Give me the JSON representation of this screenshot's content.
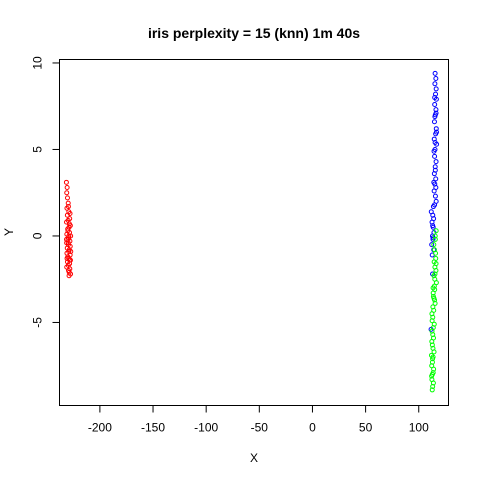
{
  "chart_data": {
    "type": "scatter",
    "title": "iris perplexity = 15 (knn) 1m 40s",
    "xlabel": "X",
    "ylabel": "Y",
    "xlim": [
      -238,
      128
    ],
    "ylim": [
      -9.8,
      10.2
    ],
    "xticks": [
      -200,
      -150,
      -100,
      -50,
      0,
      50,
      100
    ],
    "xtick_labels": [
      "-200",
      "-150",
      "-100",
      "-50",
      "0",
      "50",
      "100"
    ],
    "yticks": [
      -5,
      0,
      5,
      10
    ],
    "ytick_labels": [
      "-5",
      "0",
      "5",
      "10"
    ],
    "grid": false,
    "legend": "none",
    "series": [
      {
        "color": "#ff0000",
        "points": [
          [
            -231.5,
            3.1
          ],
          [
            -230.8,
            2.8
          ],
          [
            -231.2,
            2.5
          ],
          [
            -230.5,
            2.2
          ],
          [
            -229.8,
            1.9
          ],
          [
            -231.0,
            1.6
          ],
          [
            -229.2,
            1.4
          ],
          [
            -230.6,
            1.2
          ],
          [
            -228.4,
            1.0
          ],
          [
            -229.9,
            0.9
          ],
          [
            -231.4,
            0.8
          ],
          [
            -227.8,
            0.6
          ],
          [
            -229.0,
            0.5
          ],
          [
            -230.3,
            0.4
          ],
          [
            -228.6,
            0.2
          ],
          [
            -231.1,
            0.1
          ],
          [
            -227.5,
            0.0
          ],
          [
            -229.4,
            -0.1
          ],
          [
            -230.0,
            -0.2
          ],
          [
            -228.2,
            -0.3
          ],
          [
            -231.3,
            -0.4
          ],
          [
            -229.6,
            -0.5
          ],
          [
            -227.9,
            -0.6
          ],
          [
            -230.7,
            -0.7
          ],
          [
            -228.8,
            -0.8
          ],
          [
            -229.3,
            -0.9
          ],
          [
            -231.0,
            -1.0
          ],
          [
            -228.0,
            -1.1
          ],
          [
            -230.2,
            -1.2
          ],
          [
            -229.1,
            -1.3
          ],
          [
            -227.7,
            -1.4
          ],
          [
            -230.5,
            -1.5
          ],
          [
            -228.5,
            -1.6
          ],
          [
            -229.7,
            -1.7
          ],
          [
            -231.2,
            -1.8
          ],
          [
            -228.3,
            -1.9
          ],
          [
            -229.5,
            -2.0
          ],
          [
            -228.9,
            -2.1
          ],
          [
            -227.6,
            -2.2
          ],
          [
            -229.0,
            -2.3
          ],
          [
            -230.1,
            0.3
          ],
          [
            -228.7,
            0.7
          ],
          [
            -229.8,
            -0.4
          ],
          [
            -227.4,
            -0.9
          ],
          [
            -230.9,
            -1.3
          ],
          [
            -228.1,
            1.3
          ],
          [
            -229.6,
            1.7
          ],
          [
            -231.4,
            -0.2
          ],
          [
            -228.4,
            -1.4
          ],
          [
            -229.2,
            0.0
          ]
        ]
      },
      {
        "color": "#0000ff",
        "points": [
          [
            115.4,
            9.4
          ],
          [
            116.1,
            9.1
          ],
          [
            115.2,
            8.8
          ],
          [
            116.4,
            8.5
          ],
          [
            115.8,
            8.2
          ],
          [
            116.6,
            7.9
          ],
          [
            115.0,
            7.6
          ],
          [
            116.2,
            7.3
          ],
          [
            115.6,
            7.0
          ],
          [
            114.8,
            6.6
          ],
          [
            116.5,
            6.2
          ],
          [
            115.9,
            5.9
          ],
          [
            114.6,
            5.6
          ],
          [
            116.8,
            5.3
          ],
          [
            115.3,
            5.0
          ],
          [
            114.9,
            4.6
          ],
          [
            116.3,
            4.3
          ],
          [
            115.5,
            4.0
          ],
          [
            114.7,
            3.6
          ],
          [
            116.0,
            3.3
          ],
          [
            115.1,
            3.0
          ],
          [
            114.5,
            2.6
          ],
          [
            115.7,
            2.3
          ],
          [
            116.4,
            2.0
          ],
          [
            113.8,
            1.7
          ],
          [
            111.8,
            1.4
          ],
          [
            113.2,
            1.2
          ],
          [
            114.0,
            1.0
          ],
          [
            112.5,
            0.8
          ],
          [
            113.6,
            0.5
          ],
          [
            114.3,
            0.2
          ],
          [
            112.9,
            0.0
          ],
          [
            113.4,
            -0.2
          ],
          [
            112.2,
            -0.5
          ],
          [
            114.1,
            -0.8
          ],
          [
            112.7,
            -1.1
          ],
          [
            111.6,
            -5.4
          ],
          [
            113.0,
            -2.2
          ],
          [
            115.2,
            6.9
          ],
          [
            116.7,
            6.0
          ],
          [
            114.4,
            4.9
          ],
          [
            115.6,
            3.8
          ],
          [
            116.1,
            2.8
          ],
          [
            114.9,
            1.8
          ],
          [
            113.5,
            -0.1
          ],
          [
            115.0,
            8.0
          ],
          [
            116.3,
            7.1
          ],
          [
            115.4,
            5.4
          ],
          [
            114.2,
            3.1
          ],
          [
            113.1,
            0.6
          ]
        ]
      },
      {
        "color": "#00ff00",
        "points": [
          [
            116.4,
            0.3
          ],
          [
            115.6,
            -0.2
          ],
          [
            114.8,
            -0.8
          ],
          [
            116.0,
            -1.3
          ],
          [
            115.2,
            -1.8
          ],
          [
            114.3,
            -2.3
          ],
          [
            116.6,
            -2.7
          ],
          [
            115.0,
            -3.1
          ],
          [
            113.8,
            -3.5
          ],
          [
            115.4,
            -3.9
          ],
          [
            114.1,
            -4.3
          ],
          [
            113.2,
            -4.7
          ],
          [
            114.6,
            -5.1
          ],
          [
            112.5,
            -5.5
          ],
          [
            113.9,
            -5.9
          ],
          [
            112.8,
            -6.3
          ],
          [
            114.4,
            -6.7
          ],
          [
            113.0,
            -7.1
          ],
          [
            112.2,
            -7.5
          ],
          [
            113.6,
            -7.9
          ],
          [
            112.4,
            -8.3
          ],
          [
            113.1,
            -8.7
          ],
          [
            112.7,
            -8.9
          ],
          [
            115.8,
            -1.0
          ],
          [
            114.5,
            -1.5
          ],
          [
            116.2,
            -2.0
          ],
          [
            115.1,
            -2.5
          ],
          [
            113.5,
            -3.0
          ],
          [
            114.9,
            -3.7
          ],
          [
            113.3,
            -4.1
          ],
          [
            112.6,
            -4.9
          ],
          [
            113.7,
            -5.3
          ],
          [
            112.3,
            -6.1
          ],
          [
            113.4,
            -6.5
          ],
          [
            112.9,
            -7.3
          ],
          [
            114.0,
            -7.7
          ],
          [
            112.1,
            -8.1
          ],
          [
            113.8,
            -8.5
          ],
          [
            115.5,
            0.0
          ],
          [
            114.2,
            -0.5
          ],
          [
            116.3,
            -1.6
          ],
          [
            114.7,
            -2.9
          ],
          [
            113.6,
            -3.3
          ],
          [
            112.4,
            -4.5
          ],
          [
            113.2,
            -5.7
          ],
          [
            112.0,
            -6.9
          ],
          [
            113.5,
            -7.0
          ],
          [
            112.8,
            -8.0
          ],
          [
            114.3,
            -3.6
          ],
          [
            115.3,
            -2.2
          ]
        ]
      }
    ]
  }
}
